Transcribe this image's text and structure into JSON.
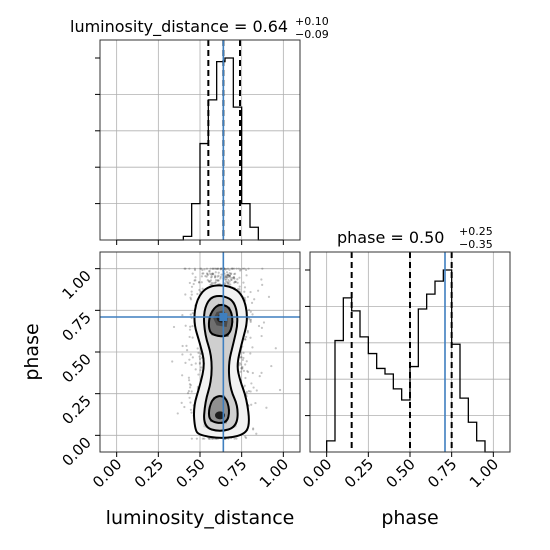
{
  "chart_data": [
    {
      "type": "histogram",
      "panel": "luminosity_distance marginal",
      "title": {
        "param": "luminosity_distance",
        "value": "0.64",
        "plus": "+0.10",
        "minus": "−0.09"
      },
      "bin_edges": [
        0.0,
        0.05,
        0.1,
        0.15,
        0.2,
        0.25,
        0.3,
        0.35,
        0.4,
        0.45,
        0.5,
        0.55,
        0.6,
        0.65,
        0.7,
        0.75,
        0.8,
        0.85,
        0.9,
        0.95,
        1.0
      ],
      "counts": [
        0,
        0,
        0,
        0,
        0,
        0,
        0,
        0,
        0.02,
        0.2,
        0.53,
        0.77,
        0.98,
        1.0,
        0.73,
        0.2,
        0.07,
        0,
        0,
        0
      ],
      "quantiles": [
        0.55,
        0.64,
        0.74
      ],
      "truth": 0.64,
      "xlim": [
        -0.1,
        1.1
      ]
    },
    {
      "type": "histogram",
      "panel": "phase marginal",
      "title": {
        "param": "phase",
        "value": "0.50",
        "plus": "+0.25",
        "minus": "−0.35"
      },
      "bin_edges": [
        0.0,
        0.05,
        0.1,
        0.15,
        0.2,
        0.25,
        0.3,
        0.35,
        0.4,
        0.45,
        0.5,
        0.55,
        0.6,
        0.65,
        0.7,
        0.75,
        0.8,
        0.85,
        0.9,
        0.95,
        1.0
      ],
      "counts": [
        0.06,
        0.6,
        0.83,
        0.76,
        0.62,
        0.53,
        0.45,
        0.42,
        0.34,
        0.28,
        0.46,
        0.77,
        0.85,
        0.92,
        0.98,
        0.58,
        0.29,
        0.16,
        0.06,
        0.0
      ],
      "quantiles": [
        0.15,
        0.5,
        0.75
      ],
      "truth": 0.71,
      "xlim": [
        -0.1,
        1.1
      ],
      "xlabel": "phase",
      "xticks": [
        "0.00",
        "0.25",
        "0.50",
        "0.75",
        "1.00"
      ]
    },
    {
      "type": "scatter",
      "panel": "2D posterior: luminosity_distance vs phase",
      "xlabel": "luminosity_distance",
      "ylabel": "phase",
      "xlim": [
        -0.1,
        1.1
      ],
      "ylim": [
        -0.1,
        1.1
      ],
      "xticks": [
        "0.00",
        "0.25",
        "0.50",
        "0.75",
        "1.00"
      ],
      "yticks": [
        "0.00",
        "0.25",
        "0.50",
        "0.75",
        "1.00"
      ],
      "truth": {
        "x": 0.64,
        "y": 0.71
      },
      "density_centers": [
        {
          "x": 0.63,
          "y": 0.7
        },
        {
          "x": 0.62,
          "y": 0.12
        }
      ],
      "contour_levels": [
        [
          [
            0.47,
            0.03
          ],
          [
            0.5,
            0.0
          ],
          [
            0.63,
            -0.02
          ],
          [
            0.76,
            0.0
          ],
          [
            0.8,
            0.06
          ],
          [
            0.78,
            0.22
          ],
          [
            0.74,
            0.33
          ],
          [
            0.72,
            0.42
          ],
          [
            0.75,
            0.55
          ],
          [
            0.79,
            0.7
          ],
          [
            0.76,
            0.84
          ],
          [
            0.68,
            0.9
          ],
          [
            0.55,
            0.9
          ],
          [
            0.48,
            0.82
          ],
          [
            0.46,
            0.68
          ],
          [
            0.5,
            0.55
          ],
          [
            0.53,
            0.43
          ],
          [
            0.5,
            0.3
          ],
          [
            0.46,
            0.17
          ]
        ],
        [
          [
            0.52,
            0.05
          ],
          [
            0.62,
            0.02
          ],
          [
            0.72,
            0.05
          ],
          [
            0.73,
            0.17
          ],
          [
            0.68,
            0.28
          ],
          [
            0.67,
            0.43
          ],
          [
            0.7,
            0.55
          ],
          [
            0.73,
            0.68
          ],
          [
            0.71,
            0.8
          ],
          [
            0.64,
            0.84
          ],
          [
            0.56,
            0.83
          ],
          [
            0.52,
            0.74
          ],
          [
            0.53,
            0.6
          ],
          [
            0.57,
            0.48
          ],
          [
            0.57,
            0.33
          ],
          [
            0.53,
            0.2
          ]
        ],
        [
          [
            0.56,
            0.08
          ],
          [
            0.66,
            0.07
          ],
          [
            0.68,
            0.15
          ],
          [
            0.65,
            0.24
          ],
          [
            0.58,
            0.23
          ],
          [
            0.55,
            0.15
          ]
        ],
        [
          [
            0.57,
            0.6
          ],
          [
            0.67,
            0.59
          ],
          [
            0.7,
            0.68
          ],
          [
            0.68,
            0.77
          ],
          [
            0.61,
            0.79
          ],
          [
            0.56,
            0.73
          ],
          [
            0.55,
            0.65
          ]
        ],
        [
          [
            0.6,
            0.66
          ],
          [
            0.66,
            0.65
          ],
          [
            0.67,
            0.71
          ],
          [
            0.64,
            0.75
          ],
          [
            0.6,
            0.74
          ],
          [
            0.58,
            0.7
          ]
        ]
      ]
    }
  ]
}
